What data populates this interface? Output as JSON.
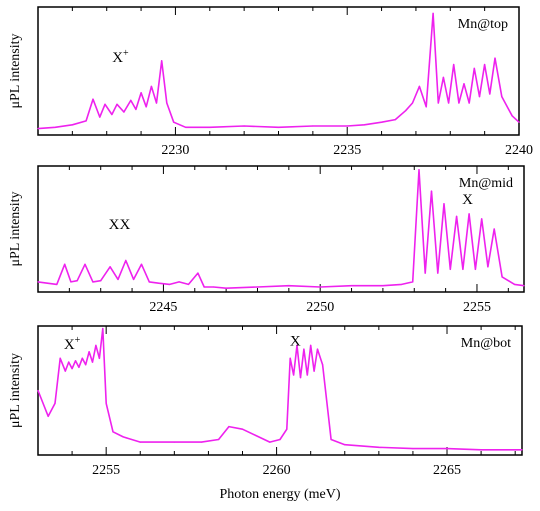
{
  "figure": {
    "xlabel": "Photon energy (meV)"
  },
  "style": {
    "trace_color": "#ee22ee",
    "axis_color": "#000000",
    "background": "#ffffff"
  },
  "chart_data": [
    {
      "type": "line",
      "tag": "Mn@top",
      "ylabel": "μPL intensity",
      "xlabel": "",
      "xlim": [
        2226,
        2240
      ],
      "ylim": [
        0,
        1
      ],
      "xticks": [
        "2230",
        "2235",
        "2240"
      ],
      "grid": false,
      "annotations": [
        {
          "text": "X",
          "sup": "+",
          "x": 2228.4,
          "y": 0.57
        }
      ],
      "series": [
        {
          "x": [
            2226,
            2226.5,
            2227,
            2227.4,
            2227.6,
            2227.8,
            2227.95,
            2228.15,
            2228.3,
            2228.5,
            2228.7,
            2228.85,
            2229.0,
            2229.15,
            2229.3,
            2229.45,
            2229.6,
            2229.75,
            2229.95,
            2230.3,
            2231,
            2232,
            2233,
            2234,
            2235,
            2235.5,
            2236,
            2236.4,
            2236.7,
            2236.9,
            2237.1,
            2237.3,
            2237.5,
            2237.65,
            2237.8,
            2237.95,
            2238.1,
            2238.25,
            2238.4,
            2238.55,
            2238.7,
            2238.85,
            2239.0,
            2239.15,
            2239.3,
            2239.5,
            2239.8,
            2240
          ],
          "y": [
            0.05,
            0.06,
            0.08,
            0.11,
            0.28,
            0.14,
            0.24,
            0.16,
            0.24,
            0.18,
            0.27,
            0.2,
            0.33,
            0.22,
            0.38,
            0.25,
            0.58,
            0.25,
            0.1,
            0.06,
            0.06,
            0.07,
            0.06,
            0.07,
            0.07,
            0.08,
            0.1,
            0.12,
            0.19,
            0.25,
            0.38,
            0.22,
            0.95,
            0.25,
            0.45,
            0.25,
            0.55,
            0.25,
            0.4,
            0.25,
            0.52,
            0.3,
            0.55,
            0.32,
            0.6,
            0.3,
            0.15,
            0.1
          ]
        }
      ]
    },
    {
      "type": "line",
      "tag": "Mn@mid",
      "ylabel": "μPL intensity",
      "xlabel": "",
      "xlim": [
        2241,
        2256.5
      ],
      "ylim": [
        0,
        1
      ],
      "xticks": [
        "2245",
        "2250",
        "2255"
      ],
      "grid": false,
      "annotations": [
        {
          "text": "XX",
          "sup": "",
          "x": 2243.6,
          "y": 0.5
        },
        {
          "text": "X",
          "sup": "",
          "x": 2254.7,
          "y": 0.7
        }
      ],
      "series": [
        {
          "x": [
            2241,
            2241.6,
            2241.85,
            2242.05,
            2242.25,
            2242.5,
            2242.75,
            2243.0,
            2243.3,
            2243.55,
            2243.8,
            2244.05,
            2244.3,
            2244.55,
            2244.85,
            2245.2,
            2245.5,
            2245.8,
            2246.1,
            2246.3,
            2246.6,
            2247,
            2248,
            2249,
            2250,
            2251,
            2252,
            2252.6,
            2252.95,
            2253.15,
            2253.35,
            2253.55,
            2253.75,
            2253.95,
            2254.15,
            2254.35,
            2254.55,
            2254.75,
            2254.95,
            2255.15,
            2255.35,
            2255.55,
            2255.8,
            2256.2,
            2256.5
          ],
          "y": [
            0.08,
            0.06,
            0.22,
            0.08,
            0.09,
            0.22,
            0.08,
            0.09,
            0.2,
            0.1,
            0.25,
            0.1,
            0.22,
            0.08,
            0.07,
            0.06,
            0.08,
            0.06,
            0.15,
            0.04,
            0.04,
            0.03,
            0.04,
            0.05,
            0.04,
            0.05,
            0.05,
            0.06,
            0.08,
            0.97,
            0.15,
            0.8,
            0.15,
            0.7,
            0.18,
            0.6,
            0.18,
            0.62,
            0.18,
            0.58,
            0.2,
            0.5,
            0.12,
            0.06,
            0.05
          ]
        }
      ]
    },
    {
      "type": "line",
      "tag": "Mn@bot",
      "ylabel": "μPL intensity",
      "xlabel": "Photon energy (meV)",
      "xlim": [
        2253,
        2267.2
      ],
      "ylim": [
        0,
        1
      ],
      "xticks": [
        "2255",
        "2260",
        "2265"
      ],
      "grid": false,
      "annotations": [
        {
          "text": "X",
          "sup": "+",
          "x": 2254.0,
          "y": 0.82
        },
        {
          "text": "X",
          "sup": "",
          "x": 2260.55,
          "y": 0.85
        }
      ],
      "series": [
        {
          "x": [
            2253,
            2253.3,
            2253.5,
            2253.65,
            2253.8,
            2253.9,
            2254.0,
            2254.1,
            2254.2,
            2254.3,
            2254.4,
            2254.5,
            2254.6,
            2254.7,
            2254.8,
            2254.9,
            2255.0,
            2255.2,
            2255.5,
            2256,
            2257,
            2257.8,
            2258.3,
            2258.6,
            2259.0,
            2259.4,
            2259.8,
            2260.1,
            2260.3,
            2260.4,
            2260.5,
            2260.6,
            2260.7,
            2260.8,
            2260.9,
            2261.0,
            2261.1,
            2261.2,
            2261.35,
            2261.6,
            2262,
            2263,
            2264,
            2265,
            2266,
            2267.2
          ],
          "y": [
            0.5,
            0.3,
            0.4,
            0.75,
            0.65,
            0.72,
            0.67,
            0.73,
            0.68,
            0.75,
            0.7,
            0.8,
            0.72,
            0.85,
            0.75,
            0.98,
            0.4,
            0.18,
            0.14,
            0.1,
            0.1,
            0.1,
            0.12,
            0.22,
            0.2,
            0.15,
            0.1,
            0.12,
            0.2,
            0.75,
            0.62,
            0.85,
            0.6,
            0.82,
            0.62,
            0.85,
            0.65,
            0.82,
            0.7,
            0.12,
            0.08,
            0.06,
            0.05,
            0.05,
            0.04,
            0.04
          ]
        }
      ]
    }
  ]
}
